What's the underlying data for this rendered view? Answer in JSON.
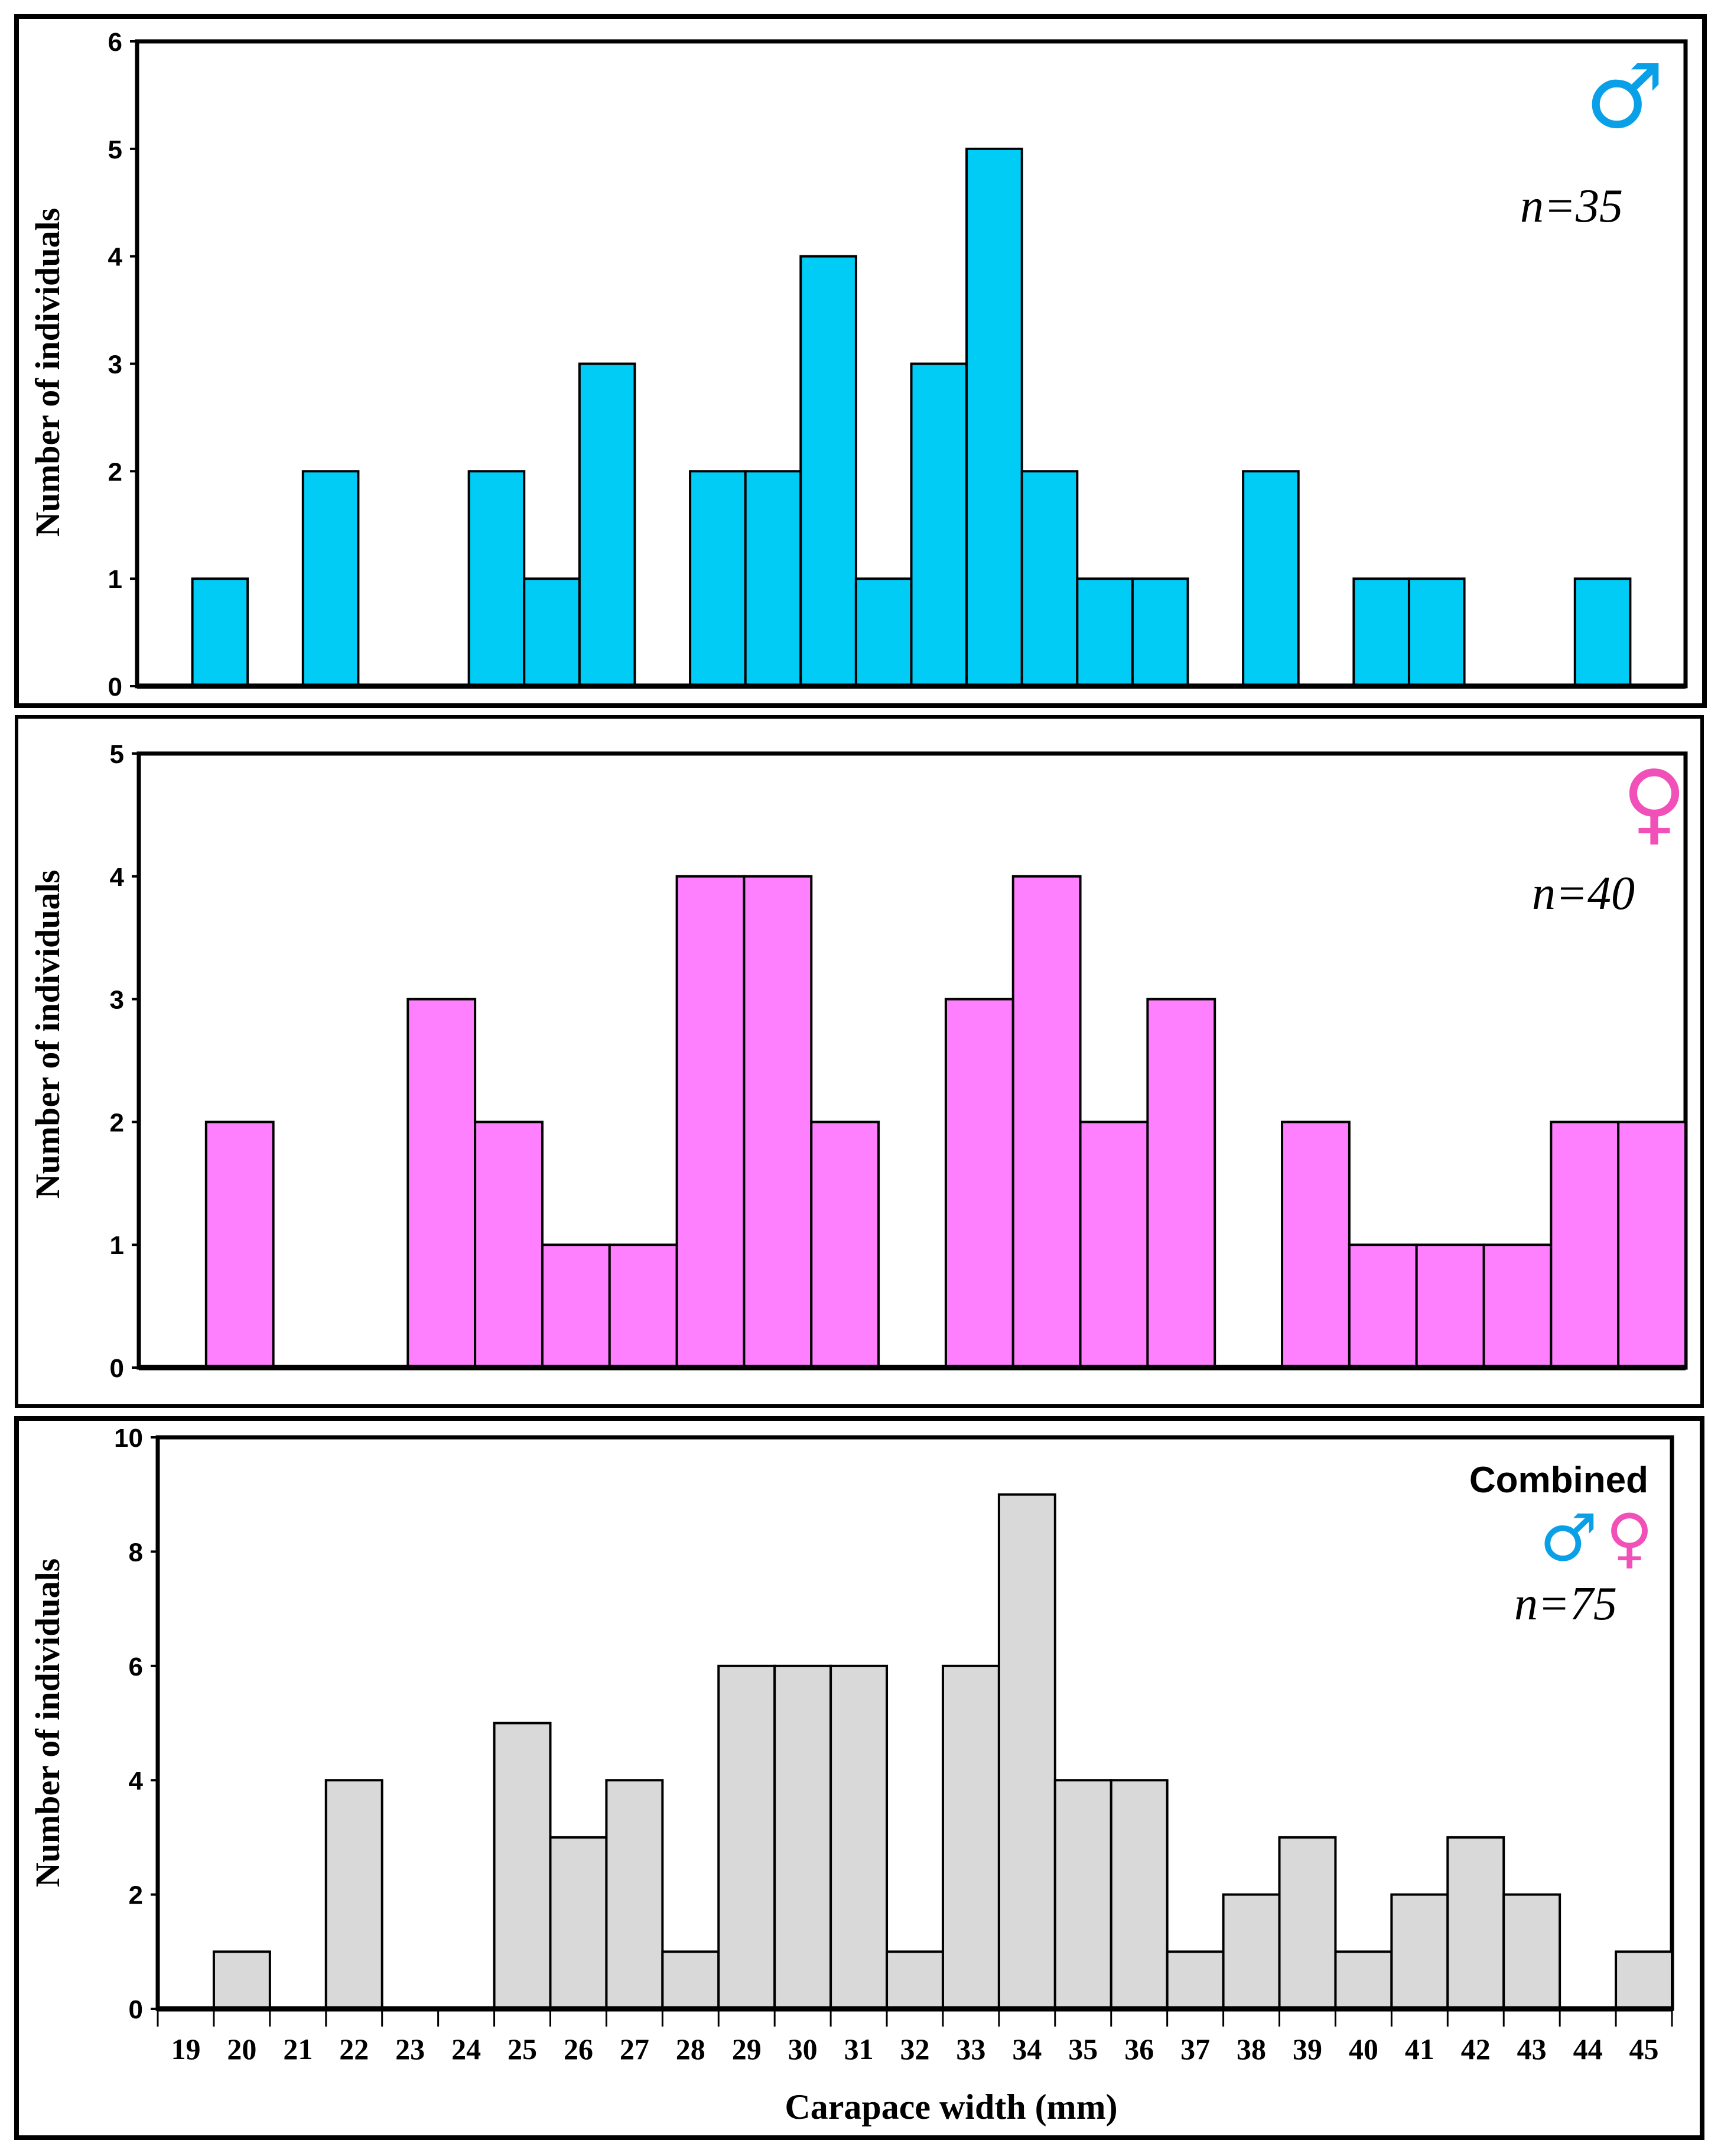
{
  "chart_data": [
    {
      "type": "bar",
      "title": "Males",
      "symbol": "♂",
      "annotation": "n=35",
      "ylabel": "Number of individuals",
      "xlabel": "",
      "ylim": [
        0,
        6
      ],
      "yticks": [
        0,
        1,
        2,
        3,
        4,
        5,
        6
      ],
      "values": [
        0,
        1,
        0,
        2,
        0,
        0,
        2,
        1,
        3,
        0,
        2,
        2,
        4,
        1,
        3,
        5,
        2,
        1,
        1,
        0,
        2,
        0,
        1,
        1,
        0,
        0,
        1,
        0
      ],
      "color": "#00CCF5",
      "symbol_color": "#0AA0E8"
    },
    {
      "type": "bar",
      "title": "Females",
      "symbol": "♀",
      "annotation": "n=40",
      "ylabel": "Number of individuals",
      "xlabel": "",
      "ylim": [
        0,
        5
      ],
      "yticks": [
        0,
        1,
        2,
        3,
        4,
        5
      ],
      "values": [
        0,
        2,
        0,
        0,
        3,
        2,
        1,
        1,
        4,
        4,
        2,
        0,
        3,
        4,
        2,
        3,
        0,
        2,
        1,
        1,
        1,
        2,
        2
      ],
      "color": "#FF80FF",
      "symbol_color": "#F050B8"
    },
    {
      "type": "bar",
      "title": "Combined",
      "symbols": [
        "♂",
        "♀"
      ],
      "annotation": "n=75",
      "ylabel": "Number of individuals",
      "xlabel": "Carapace width (mm)",
      "ylim": [
        0,
        10
      ],
      "yticks": [
        0,
        2,
        4,
        6,
        8,
        10
      ],
      "categories": [
        "19",
        "20",
        "21",
        "22",
        "23",
        "24",
        "25",
        "26",
        "27",
        "28",
        "29",
        "30",
        "31",
        "32",
        "33",
        "34",
        "35",
        "36",
        "37",
        "38",
        "39",
        "40",
        "41",
        "42",
        "43",
        "44",
        "45"
      ],
      "values": [
        0,
        1,
        0,
        4,
        0,
        0,
        5,
        3,
        4,
        1,
        6,
        6,
        6,
        1,
        6,
        9,
        4,
        4,
        1,
        2,
        3,
        1,
        2,
        3,
        2,
        0,
        1
      ],
      "color": "#D9D9D9"
    }
  ]
}
